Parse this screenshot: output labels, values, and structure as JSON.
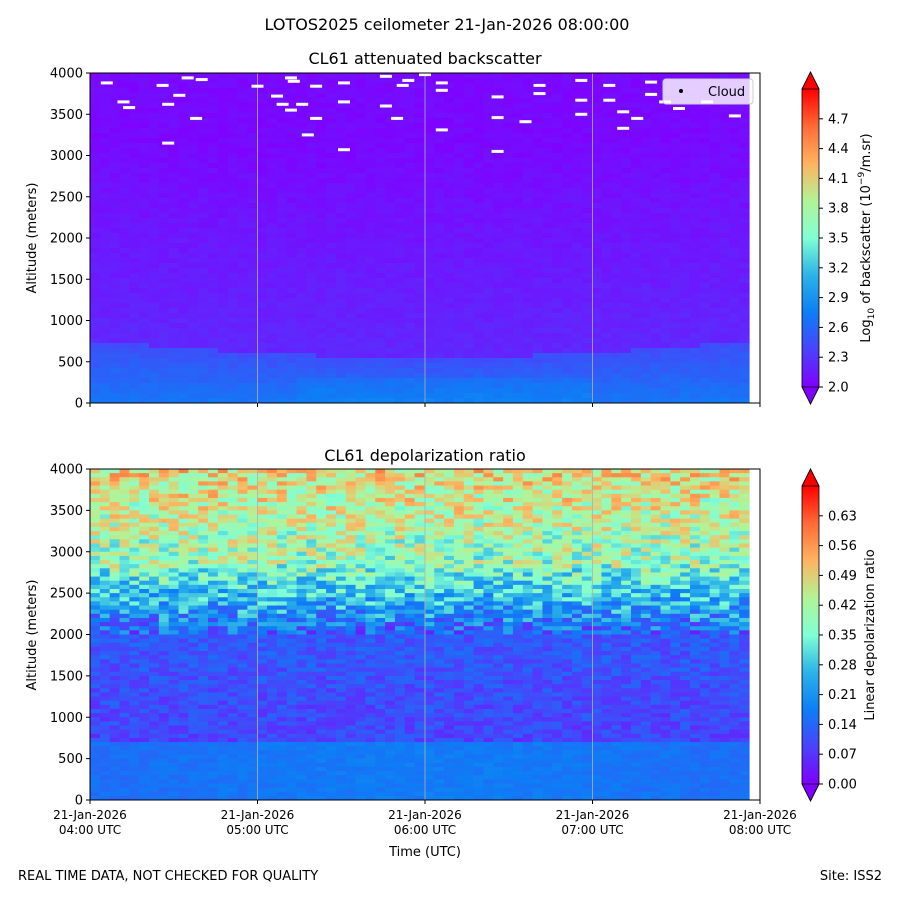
{
  "figure": {
    "title": "LOTOS2025 ceilometer 21-Jan-2026 08:00:00",
    "footer_left": "REAL TIME DATA, NOT CHECKED FOR QUALITY",
    "footer_right": "Site: ISS2",
    "xlabel": "Time (UTC)"
  },
  "chart_data": [
    {
      "type": "heatmap",
      "title": "CL61 attenuated backscatter",
      "ylabel": "Altitude (meters)",
      "ylim": [
        0,
        4000
      ],
      "yticks": [
        0,
        500,
        1000,
        1500,
        2000,
        2500,
        3000,
        3500,
        4000
      ],
      "xlim": [
        "2026-01-21T04:00",
        "2026-01-21T08:00"
      ],
      "xticks": [
        {
          "line1": "21-Jan-2026",
          "line2": "04:00 UTC"
        },
        {
          "line1": "21-Jan-2026",
          "line2": "05:00 UTC"
        },
        {
          "line1": "21-Jan-2026",
          "line2": "06:00 UTC"
        },
        {
          "line1": "21-Jan-2026",
          "line2": "07:00 UTC"
        },
        {
          "line1": "21-Jan-2026",
          "line2": "08:00 UTC"
        }
      ],
      "colorbar": {
        "label_prefix": "Log",
        "label_sub": "10",
        "label_mid": " of backscatter (10",
        "label_sup": "−9",
        "label_suffix": "/m.sr)",
        "range": [
          2.0,
          5.0
        ],
        "extend": "both",
        "ticks": [
          2.0,
          2.3,
          2.6,
          2.9,
          3.2,
          3.5,
          3.8,
          4.1,
          4.4,
          4.7
        ]
      },
      "legend": {
        "label": "Cloud",
        "position": "top-right"
      },
      "grid": "vertical at hours",
      "description_values": {
        "surface_layer_top_m": 750,
        "surface_layer_value": 2.65,
        "upper_value": 2.05
      },
      "cloud_points": [
        [
          "2026-01-21T04:06",
          3880
        ],
        [
          "2026-01-21T04:12",
          3650
        ],
        [
          "2026-01-21T04:14",
          3580
        ],
        [
          "2026-01-21T04:26",
          3850
        ],
        [
          "2026-01-21T04:28",
          3150
        ],
        [
          "2026-01-21T04:35",
          3940
        ],
        [
          "2026-01-21T04:28",
          3620
        ],
        [
          "2026-01-21T04:32",
          3730
        ],
        [
          "2026-01-21T04:40",
          3920
        ],
        [
          "2026-01-21T04:38",
          3450
        ],
        [
          "2026-01-21T05:00",
          3840
        ],
        [
          "2026-01-21T05:07",
          3720
        ],
        [
          "2026-01-21T05:09",
          3620
        ],
        [
          "2026-01-21T05:12",
          3550
        ],
        [
          "2026-01-21T05:12",
          3940
        ],
        [
          "2026-01-21T05:13",
          3900
        ],
        [
          "2026-01-21T05:16",
          3620
        ],
        [
          "2026-01-21T05:21",
          3450
        ],
        [
          "2026-01-21T05:18",
          3250
        ],
        [
          "2026-01-21T05:21",
          3840
        ],
        [
          "2026-01-21T05:31",
          3880
        ],
        [
          "2026-01-21T05:31",
          3650
        ],
        [
          "2026-01-21T05:31",
          3070
        ],
        [
          "2026-01-21T05:46",
          3960
        ],
        [
          "2026-01-21T05:46",
          3600
        ],
        [
          "2026-01-21T05:50",
          3450
        ],
        [
          "2026-01-21T05:52",
          3850
        ],
        [
          "2026-01-21T05:54",
          3910
        ],
        [
          "2026-01-21T06:00",
          3980
        ],
        [
          "2026-01-21T06:06",
          3880
        ],
        [
          "2026-01-21T06:06",
          3790
        ],
        [
          "2026-01-21T06:06",
          3310
        ],
        [
          "2026-01-21T06:26",
          3460
        ],
        [
          "2026-01-21T06:26",
          3710
        ],
        [
          "2026-01-21T06:26",
          3050
        ],
        [
          "2026-01-21T06:36",
          3410
        ],
        [
          "2026-01-21T06:41",
          3850
        ],
        [
          "2026-01-21T06:41",
          3750
        ],
        [
          "2026-01-21T06:56",
          3910
        ],
        [
          "2026-01-21T06:56",
          3670
        ],
        [
          "2026-01-21T06:56",
          3500
        ],
        [
          "2026-01-21T07:06",
          3850
        ],
        [
          "2026-01-21T07:06",
          3670
        ],
        [
          "2026-01-21T07:11",
          3530
        ],
        [
          "2026-01-21T07:11",
          3330
        ],
        [
          "2026-01-21T07:16",
          3450
        ],
        [
          "2026-01-21T07:21",
          3890
        ],
        [
          "2026-01-21T07:21",
          3740
        ],
        [
          "2026-01-21T07:26",
          3650
        ],
        [
          "2026-01-21T07:31",
          3570
        ],
        [
          "2026-01-21T07:41",
          3650
        ],
        [
          "2026-01-21T07:51",
          3480
        ]
      ]
    },
    {
      "type": "heatmap",
      "title": "CL61 depolarization ratio",
      "ylabel": "Altitude (meters)",
      "ylim": [
        0,
        4000
      ],
      "yticks": [
        0,
        500,
        1000,
        1500,
        2000,
        2500,
        3000,
        3500,
        4000
      ],
      "xlim": [
        "2026-01-21T04:00",
        "2026-01-21T08:00"
      ],
      "colorbar": {
        "label": "Linear depolarization ratio",
        "range": [
          0.0,
          0.7
        ],
        "extend": "both",
        "ticks": [
          0.0,
          0.07,
          0.14,
          0.21,
          0.28,
          0.35,
          0.42,
          0.49,
          0.56,
          0.63
        ]
      },
      "grid": "vertical at hours",
      "description_values": {
        "surface_layer_value": 0.16,
        "mid_layer_value": 0.09,
        "upper_layer_value": 0.45
      }
    }
  ]
}
